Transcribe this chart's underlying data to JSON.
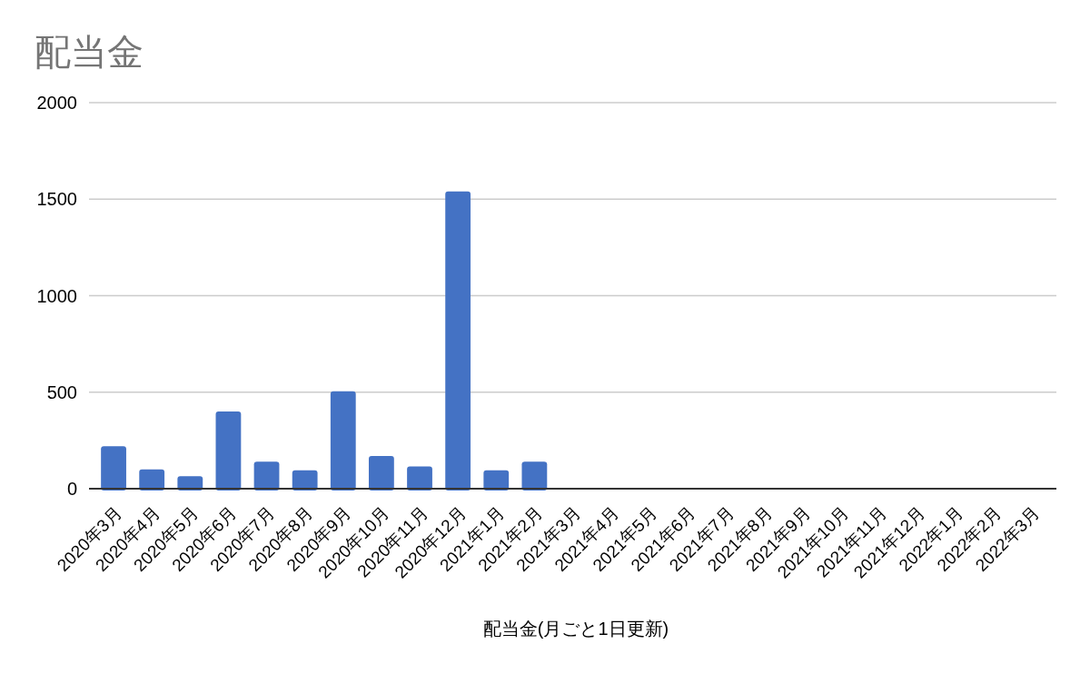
{
  "chart_data": {
    "type": "bar",
    "title": "配当金",
    "xlabel": "配当金(月ごと1日更新)",
    "categories": [
      "2020年3月",
      "2020年4月",
      "2020年5月",
      "2020年6月",
      "2020年7月",
      "2020年8月",
      "2020年9月",
      "2020年10月",
      "2020年11月",
      "2020年12月",
      "2021年1月",
      "2021年2月",
      "2021年3月",
      "2021年4月",
      "2021年5月",
      "2021年6月",
      "2021年7月",
      "2021年8月",
      "2021年9月",
      "2021年10月",
      "2021年11月",
      "2021年12月",
      "2022年1月",
      "2022年2月",
      "2022年3月"
    ],
    "values": [
      220,
      100,
      65,
      400,
      140,
      95,
      505,
      170,
      115,
      1540,
      95,
      140,
      null,
      null,
      null,
      null,
      null,
      null,
      null,
      null,
      null,
      null,
      null,
      null,
      null
    ],
    "color": "#4472c4",
    "ylim": [
      0,
      2000
    ],
    "yticks": [
      0,
      500,
      1000,
      1500,
      2000
    ],
    "grid": "y"
  }
}
